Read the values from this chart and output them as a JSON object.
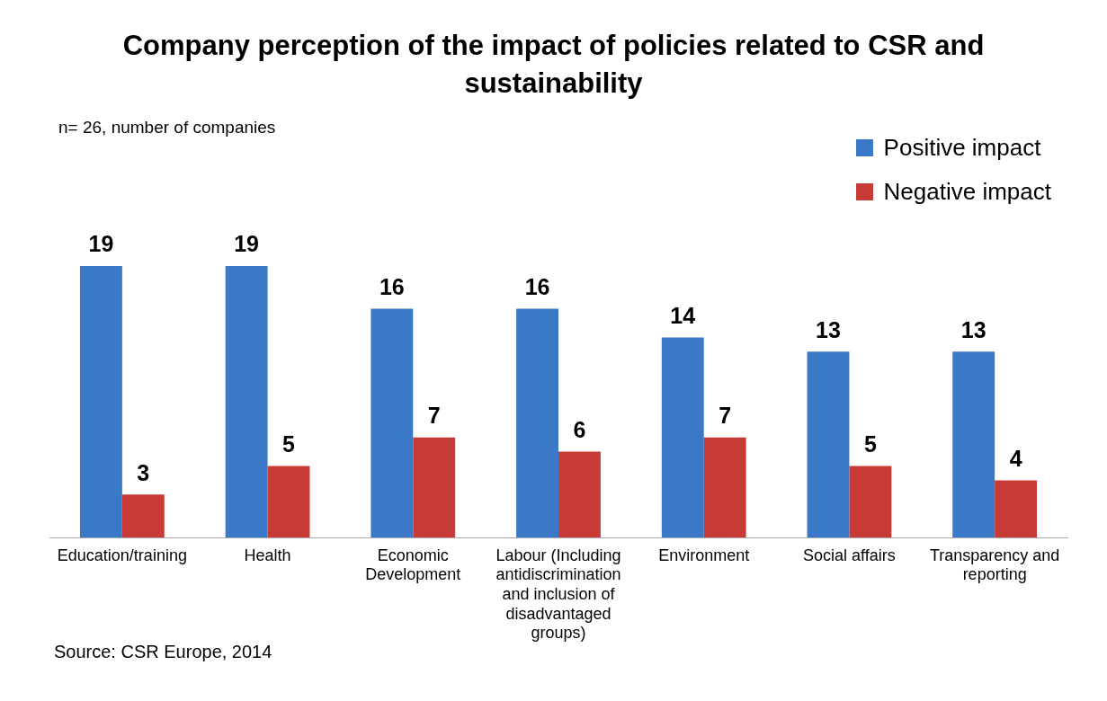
{
  "chart_data": {
    "type": "bar",
    "title": "Company perception of the impact of policies related to CSR and sustainability",
    "subtitle": "n= 26, number of companies",
    "categories": [
      "Education/training",
      "Health",
      "Economic Development",
      "Labour (Including antidiscrimination and inclusion of disadvantaged groups)",
      "Environment",
      "Social affairs",
      "Transparency and reporting"
    ],
    "series": [
      {
        "name": "Positive impact",
        "color": "#3b78c8",
        "values": [
          19,
          19,
          16,
          16,
          14,
          13,
          13
        ]
      },
      {
        "name": "Negative impact",
        "color": "#c83a36",
        "values": [
          3,
          5,
          7,
          6,
          7,
          5,
          4
        ]
      }
    ],
    "data_labels": true,
    "grid": false,
    "legend": "top right",
    "tick_labels": "x",
    "annotations": [
      "Source: CSR Europe, 2014"
    ]
  }
}
